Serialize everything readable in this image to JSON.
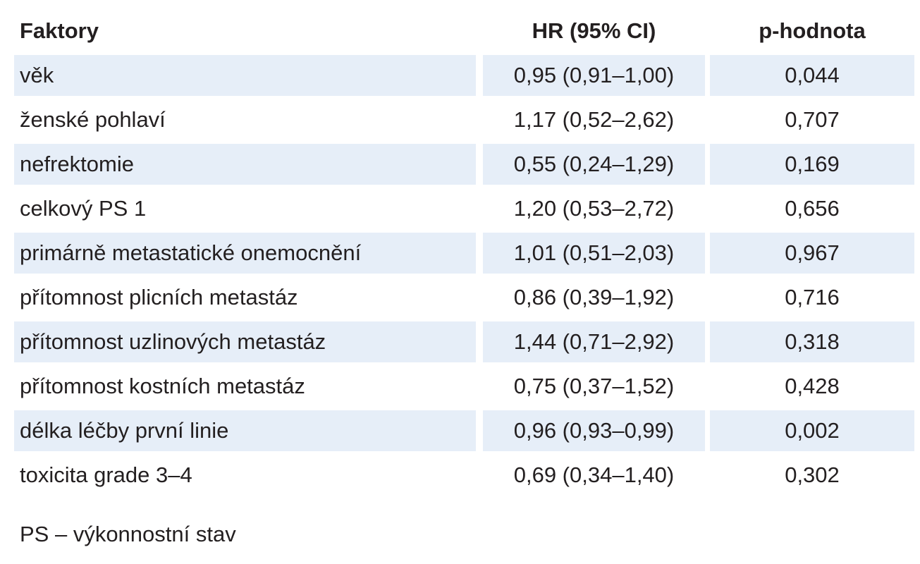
{
  "table": {
    "headers": [
      "Faktory",
      "HR (95% CI)",
      "p-hodnota"
    ],
    "rows": [
      {
        "factor": "věk",
        "hr": "0,95 (0,91–1,00)",
        "p": "0,044"
      },
      {
        "factor": "ženské pohlaví",
        "hr": "1,17 (0,52–2,62)",
        "p": "0,707"
      },
      {
        "factor": "nefrektomie",
        "hr": "0,55 (0,24–1,29)",
        "p": "0,169"
      },
      {
        "factor": "celkový PS 1",
        "hr": "1,20 (0,53–2,72)",
        "p": "0,656"
      },
      {
        "factor": "primárně metastatické onemocnění",
        "hr": "1,01 (0,51–2,03)",
        "p": "0,967"
      },
      {
        "factor": "přítomnost plicních metastáz",
        "hr": "0,86 (0,39–1,92)",
        "p": "0,716"
      },
      {
        "factor": "přítomnost uzlinových metastáz",
        "hr": "1,44 (0,71–2,92)",
        "p": "0,318"
      },
      {
        "factor": "přítomnost kostních metastáz",
        "hr": "0,75 (0,37–1,52)",
        "p": "0,428"
      },
      {
        "factor": "délka léčby první linie",
        "hr": "0,96 (0,93–0,99)",
        "p": "0,002"
      },
      {
        "factor": "toxicita grade 3–4",
        "hr": "0,69 (0,34–1,40)",
        "p": "0,302"
      }
    ]
  },
  "footnote": "PS – výkonnostní stav",
  "colors": {
    "shaded_row": "#e6eef8",
    "text": "#231f20"
  }
}
